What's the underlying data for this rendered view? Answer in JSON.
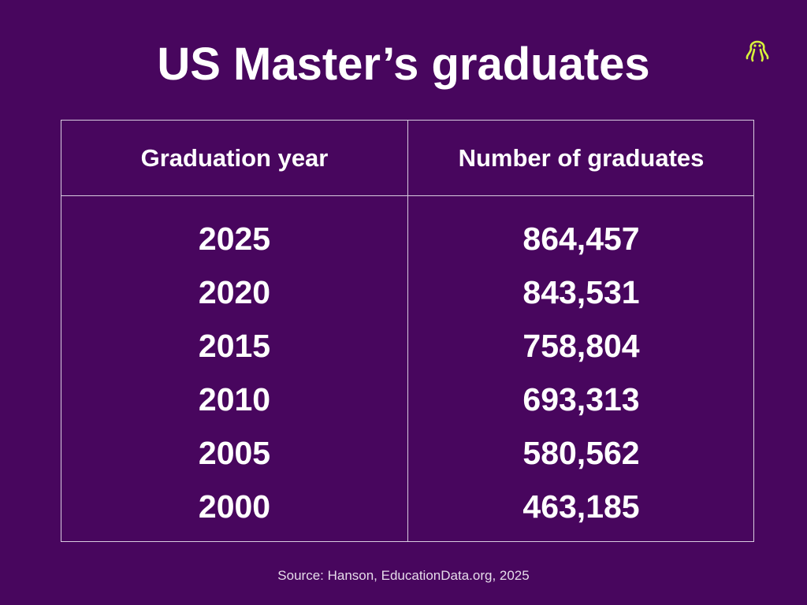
{
  "title": "US Master’s graduates",
  "table": {
    "header": [
      "Graduation year",
      "Number of graduates"
    ],
    "rows": [
      [
        "2025",
        "864,457"
      ],
      [
        "2020",
        "843,531"
      ],
      [
        "2015",
        "758,804"
      ],
      [
        "2010",
        "693,313"
      ],
      [
        "2005",
        "580,562"
      ],
      [
        "2000",
        "463,185"
      ]
    ]
  },
  "source": "Source: Hanson, EducationData.org, 2025"
}
